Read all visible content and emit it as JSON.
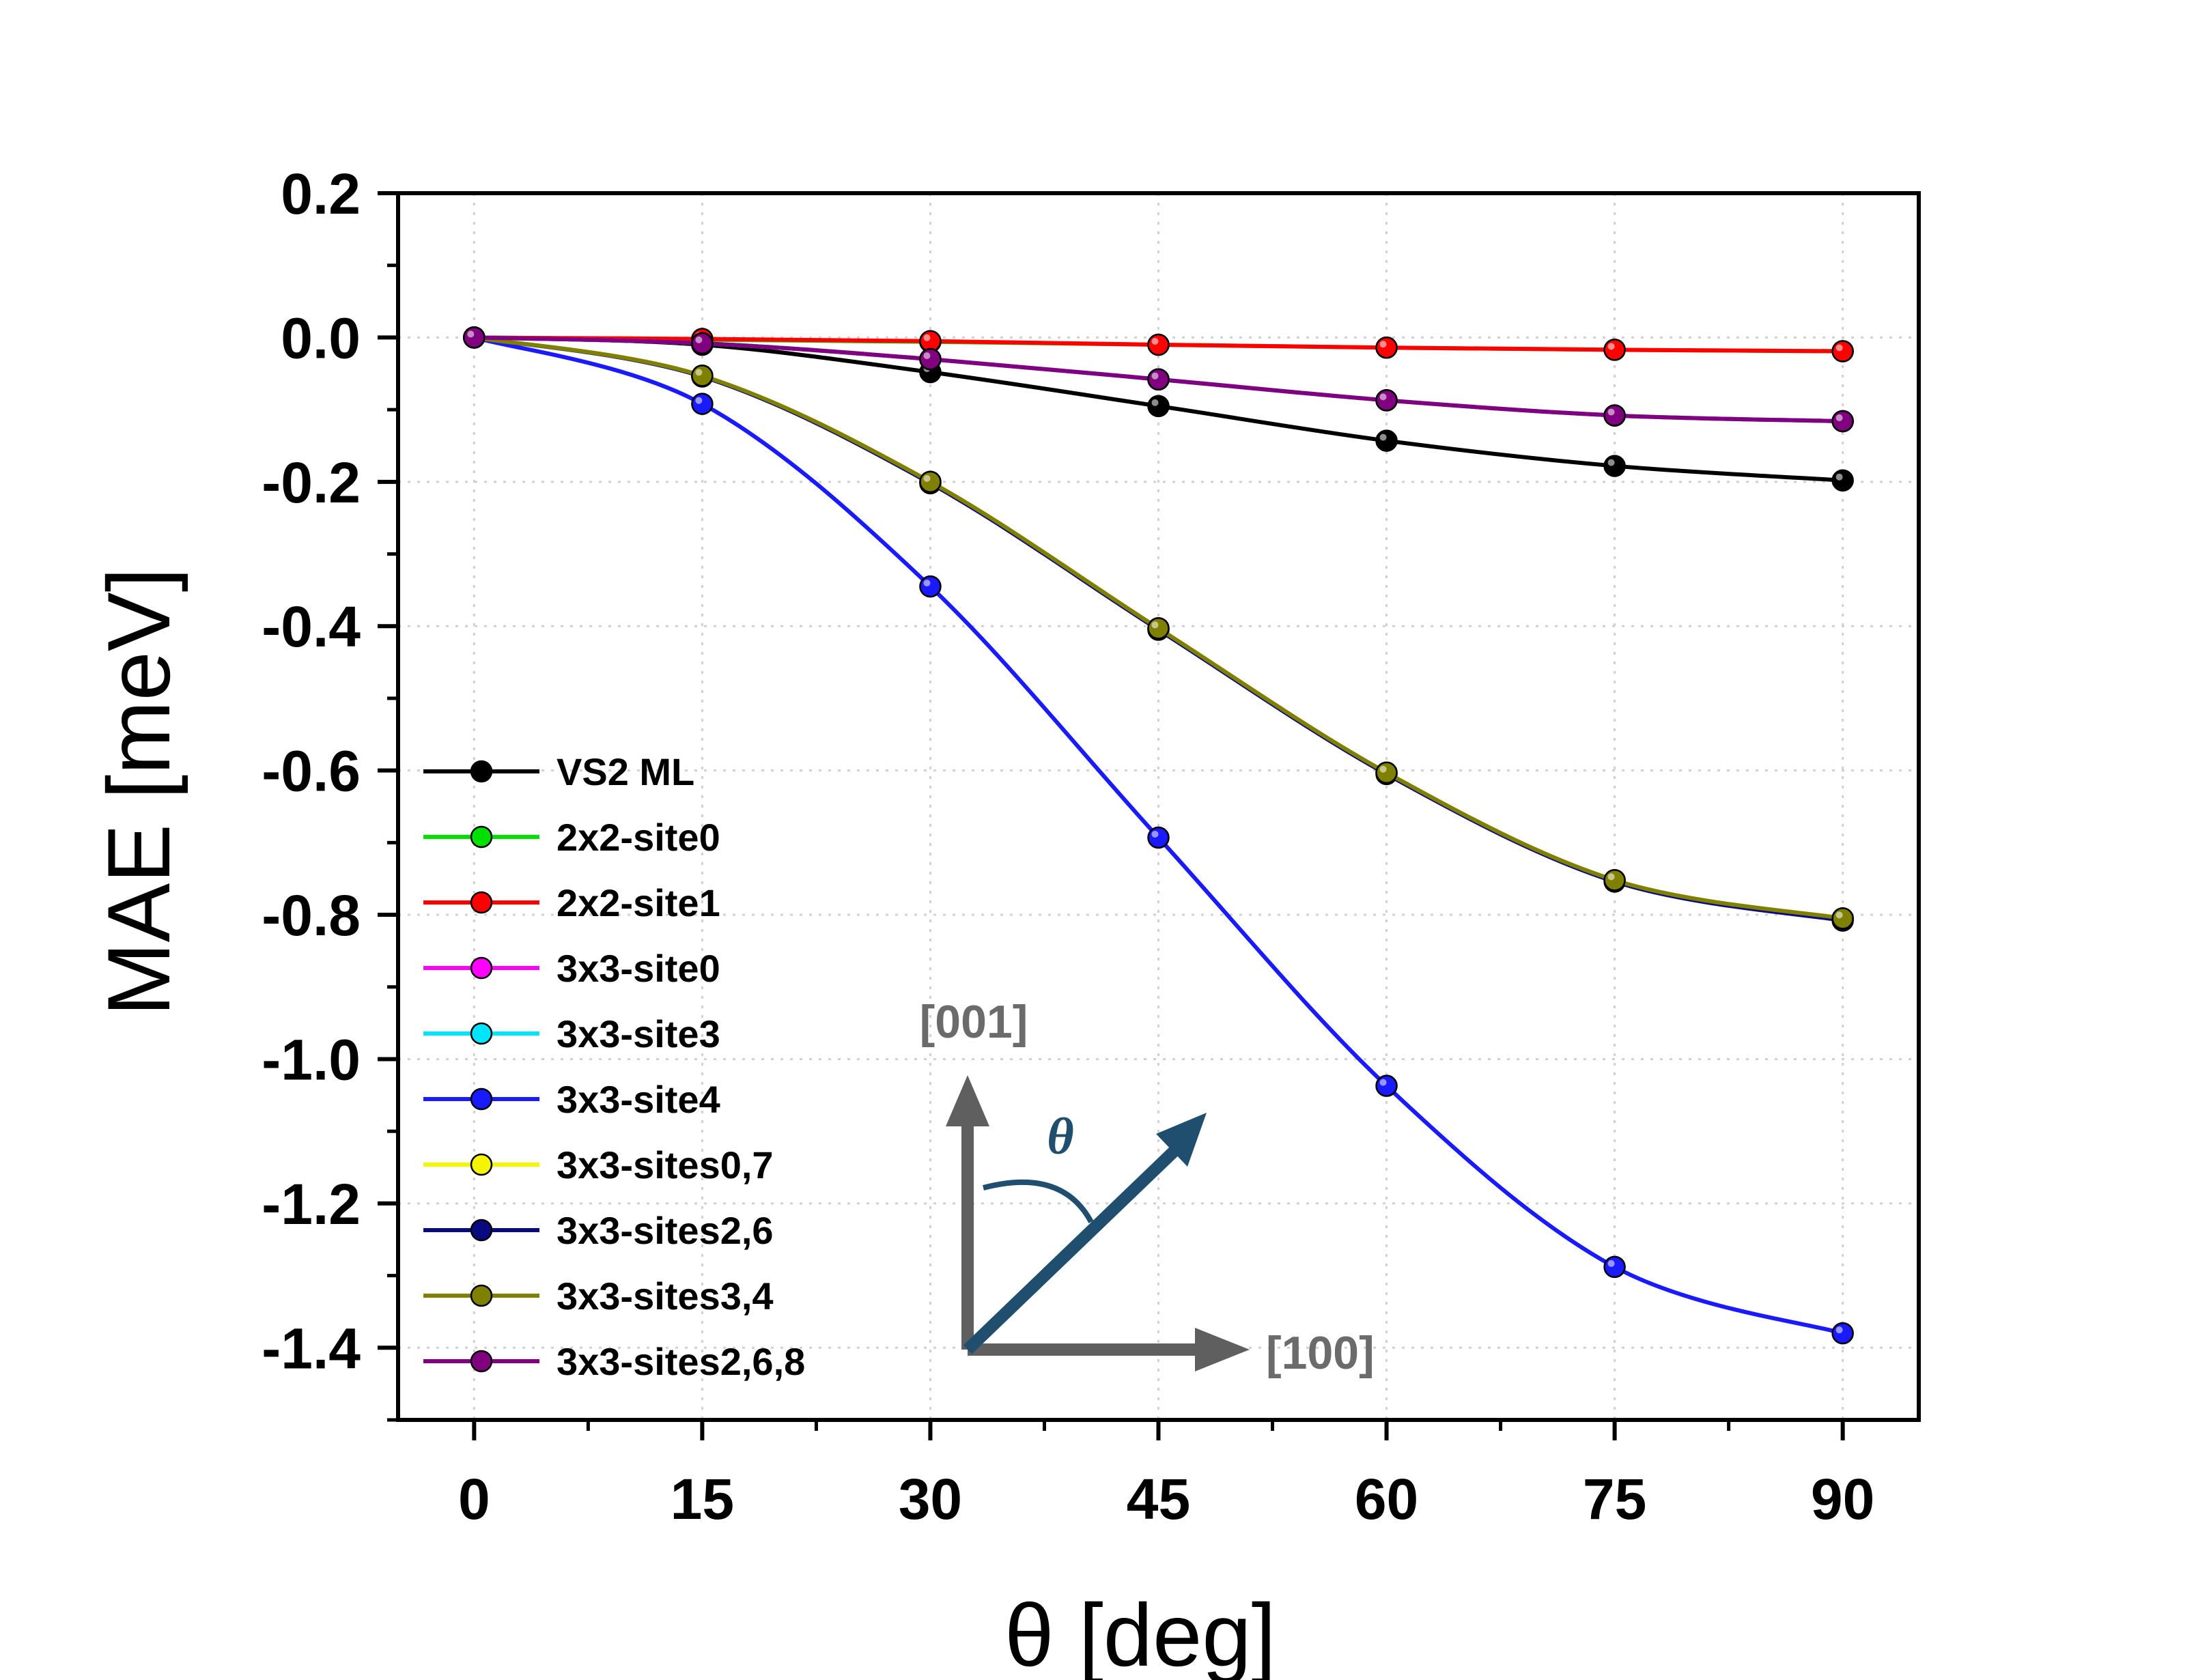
{
  "chart_data": {
    "type": "line",
    "title": "",
    "xlabel": "θ [deg]",
    "ylabel": "MAE [meV]",
    "x": [
      0,
      15,
      30,
      45,
      60,
      75,
      90
    ],
    "xlim": [
      -5,
      95
    ],
    "ylim": [
      -1.5,
      0.2
    ],
    "xticks": [
      "0",
      "15",
      "30",
      "45",
      "60",
      "75",
      "90"
    ],
    "yticks": [
      "0.2",
      "0.0",
      "-0.2",
      "-0.4",
      "-0.6",
      "-0.8",
      "-1.0",
      "-1.2",
      "-1.4"
    ],
    "grid": true,
    "legend_position": "bottom-left",
    "series": [
      {
        "name": "VS2 ML",
        "color": "#000000",
        "values": [
          0,
          -0.01,
          -0.048,
          -0.095,
          -0.143,
          -0.178,
          -0.198
        ]
      },
      {
        "name": "2x2-site0",
        "color": "#00e000",
        "values": [
          0,
          -0.003,
          -0.006,
          -0.01,
          -0.014,
          -0.017,
          -0.019
        ]
      },
      {
        "name": "2x2-site1",
        "color": "#ff0000",
        "values": [
          0,
          -0.002,
          -0.005,
          -0.01,
          -0.014,
          -0.017,
          -0.019
        ]
      },
      {
        "name": "3x3-site0",
        "color": "#ff00ff",
        "values": [
          0,
          -0.008,
          -0.03,
          -0.058,
          -0.087,
          -0.108,
          -0.116
        ]
      },
      {
        "name": "3x3-site3",
        "color": "#00e5ff",
        "values": [
          0,
          -0.008,
          -0.03,
          -0.058,
          -0.087,
          -0.108,
          -0.116
        ]
      },
      {
        "name": "3x3-site4",
        "color": "#1a1aff",
        "values": [
          0,
          -0.092,
          -0.345,
          -0.693,
          -1.037,
          -1.288,
          -1.38
        ]
      },
      {
        "name": "3x3-sites0,7",
        "color": "#f5f500",
        "values": [
          0,
          -0.053,
          -0.2,
          -0.403,
          -0.603,
          -0.752,
          -0.805
        ]
      },
      {
        "name": "3x3-sites2,6",
        "color": "#0a0a80",
        "values": [
          0,
          -0.054,
          -0.202,
          -0.405,
          -0.605,
          -0.754,
          -0.808
        ]
      },
      {
        "name": "3x3-sites3,4",
        "color": "#808000",
        "values": [
          0,
          -0.053,
          -0.2,
          -0.403,
          -0.603,
          -0.752,
          -0.805
        ]
      },
      {
        "name": "3x3-sites2,6,8",
        "color": "#800080",
        "values": [
          0,
          -0.008,
          -0.03,
          -0.058,
          -0.087,
          -0.108,
          -0.116
        ]
      }
    ],
    "inset": {
      "label_z": "[001]",
      "label_x": "[100]",
      "label_theta": "θ"
    }
  }
}
